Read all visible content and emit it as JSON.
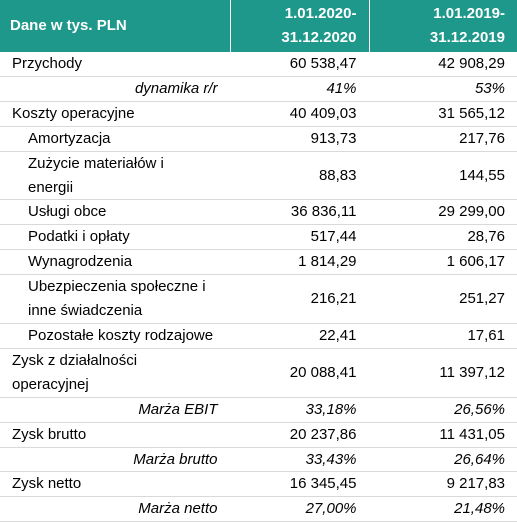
{
  "table": {
    "header": {
      "label": "Dane w tys. PLN",
      "col1": [
        "1.01.2020-",
        "31.12.2020"
      ],
      "col2": [
        "1.01.2019-",
        "31.12.2019"
      ]
    },
    "rows": [
      {
        "label": [
          "Przychody"
        ],
        "v2020": "60 538,47",
        "v2019": "42 908,29",
        "style": "main"
      },
      {
        "label": [
          "dynamika r/r"
        ],
        "v2020": "41%",
        "v2019": "53%",
        "style": "italic"
      },
      {
        "label": [
          "Koszty operacyjne"
        ],
        "v2020": "40 409,03",
        "v2019": "31 565,12",
        "style": "main"
      },
      {
        "label": [
          "Amortyzacja"
        ],
        "v2020": "913,73",
        "v2019": "217,76",
        "style": "indent"
      },
      {
        "label": [
          "Zużycie materiałów i",
          "energii"
        ],
        "v2020": "88,83",
        "v2019": "144,55",
        "style": "indent"
      },
      {
        "label": [
          "Usługi obce"
        ],
        "v2020": "36 836,11",
        "v2019": "29 299,00",
        "style": "indent"
      },
      {
        "label": [
          "Podatki i opłaty"
        ],
        "v2020": "517,44",
        "v2019": "28,76",
        "style": "indent"
      },
      {
        "label": [
          "Wynagrodzenia"
        ],
        "v2020": "1 814,29",
        "v2019": "1 606,17",
        "style": "indent"
      },
      {
        "label": [
          "Ubezpieczenia społeczne i",
          "inne świadczenia"
        ],
        "v2020": "216,21",
        "v2019": "251,27",
        "style": "indent"
      },
      {
        "label": [
          "Pozostałe koszty rodzajowe"
        ],
        "v2020": "22,41",
        "v2019": "17,61",
        "style": "indent"
      },
      {
        "label": [
          "Zysk z działalności",
          "operacyjnej"
        ],
        "v2020": "20 088,41",
        "v2019": "11 397,12",
        "style": "main"
      },
      {
        "label": [
          "Marża EBIT"
        ],
        "v2020": "33,18%",
        "v2019": "26,56%",
        "style": "italic"
      },
      {
        "label": [
          "Zysk brutto"
        ],
        "v2020": "20 237,86",
        "v2019": "11 431,05",
        "style": "main"
      },
      {
        "label": [
          "Marża brutto"
        ],
        "v2020": "33,43%",
        "v2019": "26,64%",
        "style": "italic"
      },
      {
        "label": [
          "Zysk netto"
        ],
        "v2020": "16 345,45",
        "v2019": "9 217,83",
        "style": "main"
      },
      {
        "label": [
          "Marża netto"
        ],
        "v2020": "27,00%",
        "v2019": "21,48%",
        "style": "italic"
      }
    ]
  }
}
